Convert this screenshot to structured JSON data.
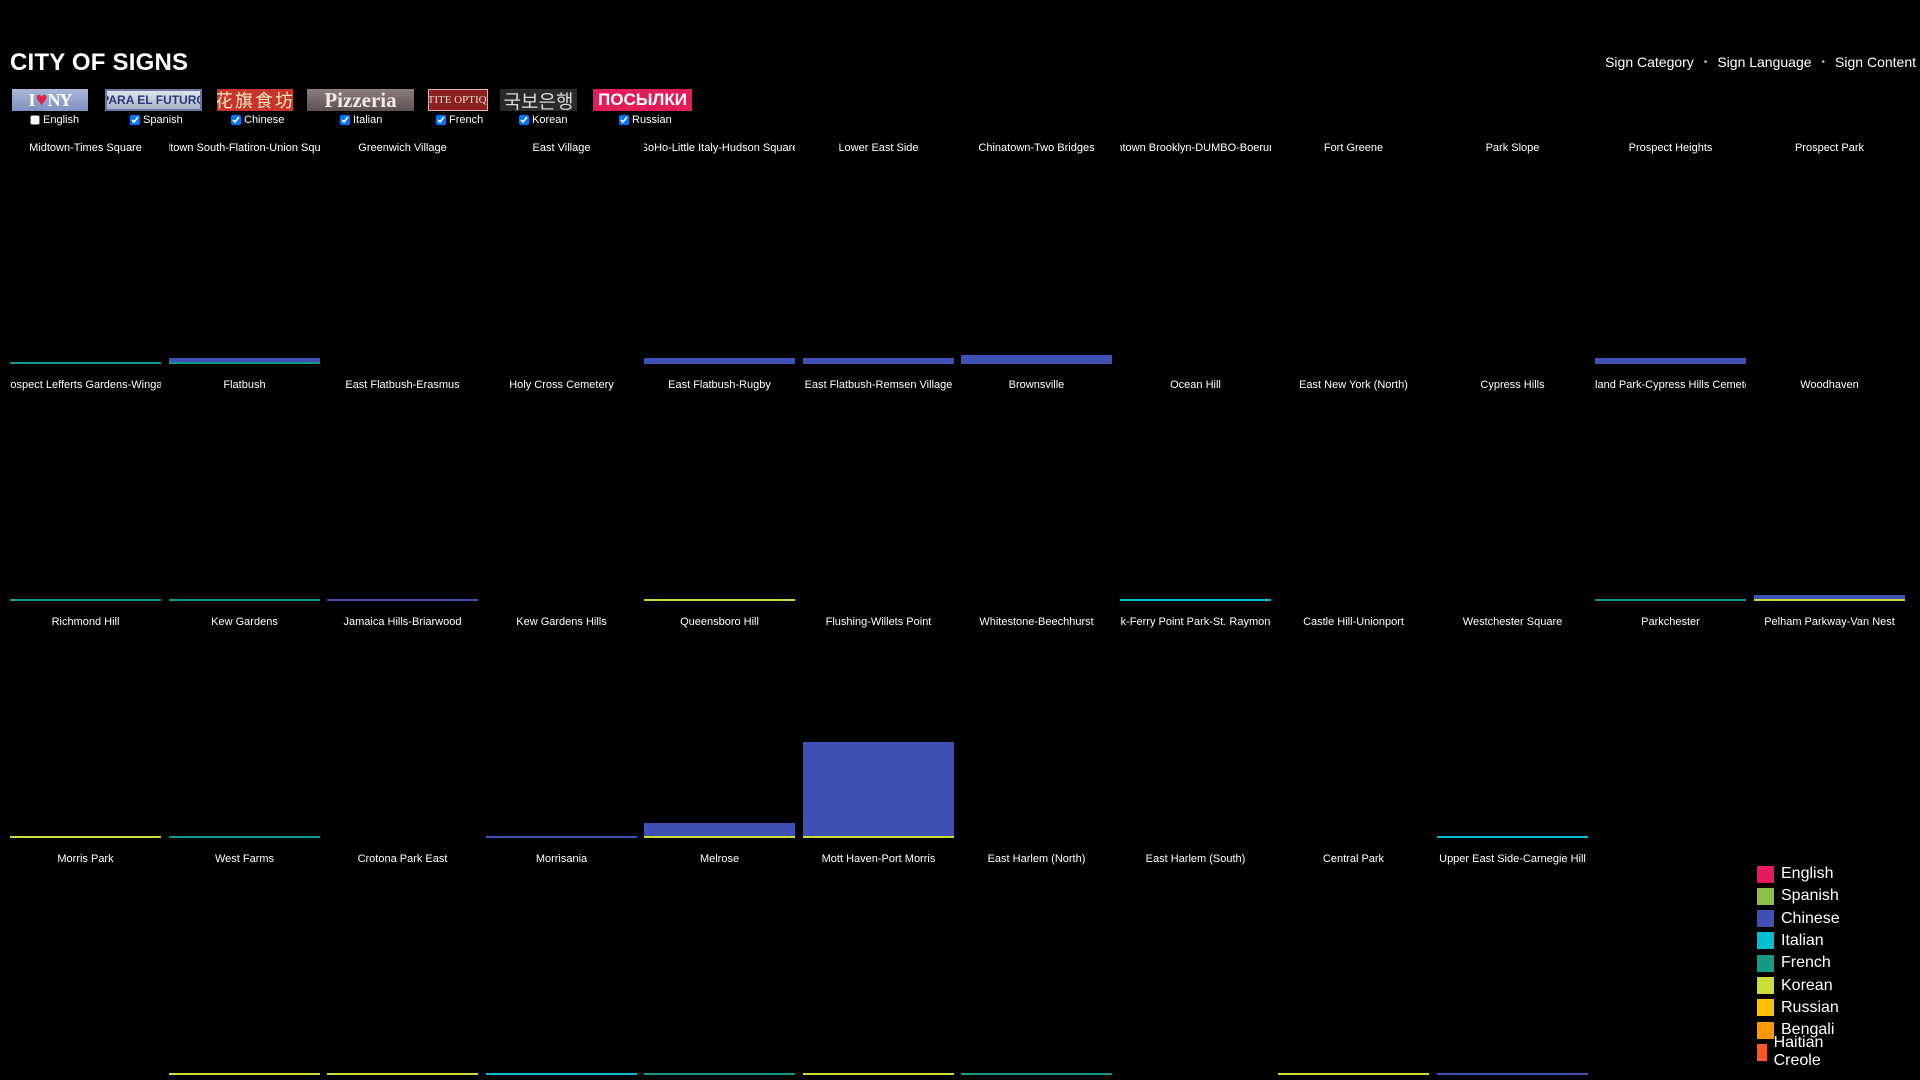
{
  "title": "CITY OF SIGNS",
  "nav": [
    "Sign Category",
    "Sign Language",
    "Sign Content"
  ],
  "filters": [
    {
      "key": "english",
      "label": "English",
      "checked": false,
      "sign_text": "I ♥ NY",
      "icon": "i-love-ny-sign-icon"
    },
    {
      "key": "spanish",
      "label": "Spanish",
      "checked": true,
      "sign_text": "PARA EL FUTURO",
      "icon": "para-el-futuro-sign-icon"
    },
    {
      "key": "chinese",
      "label": "Chinese",
      "checked": true,
      "sign_text": "花旗食坊",
      "icon": "chinese-restaurant-sign-icon"
    },
    {
      "key": "italian",
      "label": "Italian",
      "checked": true,
      "sign_text": "Pizzeria",
      "icon": "pizzeria-sign-icon"
    },
    {
      "key": "french",
      "label": "French",
      "checked": true,
      "sign_text": "PETITE OPTIQUE",
      "icon": "petite-optique-sign-icon"
    },
    {
      "key": "korean",
      "label": "Korean",
      "checked": true,
      "sign_text": "국보은행",
      "icon": "korean-bank-sign-icon"
    },
    {
      "key": "russian",
      "label": "Russian",
      "checked": true,
      "sign_text": "ПОСЫЛКИ",
      "icon": "posylki-sign-icon"
    }
  ],
  "colors": {
    "english": "#e8195c",
    "spanish": "#8bc34a",
    "chinese": "#3f51b5",
    "italian": "#00bcd4",
    "french": "#129a86",
    "korean": "#cddc39",
    "russian": "#ffc107",
    "bengali": "#ff9800",
    "haitian_creole": "#ff5722",
    "baseline_blue": "#3f51b5",
    "baseline_teal": "#129a86",
    "baseline_lime": "#cddc39"
  },
  "neighborhoods": [
    {
      "label": "Midtown-Times Square",
      "baseline": "french",
      "bar": 0
    },
    {
      "label": "Midtown South-Flatiron-Union Square",
      "baseline": "french",
      "bar": 0.03
    },
    {
      "label": "Greenwich Village",
      "baseline": null,
      "bar": 0
    },
    {
      "label": "East Village",
      "baseline": null,
      "bar": 0
    },
    {
      "label": "SoHo-Little Italy-Hudson Square",
      "baseline": "chinese",
      "bar": 0.04
    },
    {
      "label": "Lower East Side",
      "baseline": "chinese",
      "bar": 0.01
    },
    {
      "label": "Chinatown-Two Bridges",
      "baseline": "chinese",
      "bar": 0.07
    },
    {
      "label": "Downtown Brooklyn-DUMBO-Boerum Hill",
      "baseline": null,
      "bar": 0
    },
    {
      "label": "Fort Greene",
      "baseline": null,
      "bar": 0
    },
    {
      "label": "Park Slope",
      "baseline": null,
      "bar": 0
    },
    {
      "label": "Prospect Heights",
      "baseline": "chinese",
      "bar": 0.01
    },
    {
      "label": "Prospect Park",
      "baseline": null,
      "bar": 0
    },
    {
      "label": "Prospect Lefferts Gardens-Wingate",
      "baseline": "french",
      "bar": 0
    },
    {
      "label": "Flatbush",
      "baseline": "french",
      "bar": 0
    },
    {
      "label": "East Flatbush-Erasmus",
      "baseline": "chinese",
      "bar": 0
    },
    {
      "label": "Holy Cross Cemetery",
      "baseline": null,
      "bar": 0
    },
    {
      "label": "East Flatbush-Rugby",
      "baseline": "korean",
      "bar": 0
    },
    {
      "label": "East Flatbush-Remsen Village",
      "baseline": null,
      "bar": 0
    },
    {
      "label": "Brownsville",
      "baseline": null,
      "bar": 0
    },
    {
      "label": "Ocean Hill",
      "baseline": "italian",
      "bar": 0
    },
    {
      "label": "East New York (North)",
      "baseline": null,
      "bar": 0
    },
    {
      "label": "Cypress Hills",
      "baseline": null,
      "bar": 0
    },
    {
      "label": "Highland Park-Cypress Hills Cemeteries",
      "baseline": "french",
      "bar": 0
    },
    {
      "label": "Woodhaven",
      "baseline": "korean",
      "bar": 0.03
    },
    {
      "label": "Richmond Hill",
      "baseline": "korean",
      "bar": 0
    },
    {
      "label": "Kew Gardens",
      "baseline": "french",
      "bar": 0
    },
    {
      "label": "Jamaica Hills-Briarwood",
      "baseline": null,
      "bar": 0
    },
    {
      "label": "Kew Gardens Hills",
      "baseline": "chinese",
      "bar": 0
    },
    {
      "label": "Queensboro Hill",
      "baseline": "korean",
      "bar": 0.13
    },
    {
      "label": "Flushing-Willets Point",
      "baseline": "korean",
      "bar": 0.92
    },
    {
      "label": "Whitestone-Beechhurst",
      "baseline": null,
      "bar": 0
    },
    {
      "label": "Throgs Neck-Ferry Point Park-St. Raymond Cemetery",
      "baseline": null,
      "bar": 0
    },
    {
      "label": "Castle Hill-Unionport",
      "baseline": null,
      "bar": 0
    },
    {
      "label": "Westchester Square",
      "baseline": "italian",
      "bar": 0
    },
    {
      "label": "Parkchester",
      "baseline": null,
      "bar": 0
    },
    {
      "label": "Pelham Parkway-Van Nest",
      "baseline": null,
      "bar": 0
    },
    {
      "label": "Morris Park",
      "baseline": null,
      "bar": 0
    },
    {
      "label": "West Farms",
      "baseline": "korean",
      "bar": 0
    },
    {
      "label": "Crotona Park East",
      "baseline": "korean",
      "bar": 0
    },
    {
      "label": "Morrisania",
      "baseline": "italian",
      "bar": 0
    },
    {
      "label": "Melrose",
      "baseline": "french",
      "bar": 0
    },
    {
      "label": "Mott Haven-Port Morris",
      "baseline": "korean",
      "bar": 0
    },
    {
      "label": "East Harlem (North)",
      "baseline": "french",
      "bar": 0
    },
    {
      "label": "East Harlem (South)",
      "baseline": null,
      "bar": 0
    },
    {
      "label": "Central Park",
      "baseline": "korean",
      "bar": 0
    },
    {
      "label": "Upper East Side-Carnegie Hill",
      "baseline": "chinese",
      "bar": 0
    }
  ],
  "legend": [
    {
      "label": "English",
      "color_key": "english"
    },
    {
      "label": "Spanish",
      "color_key": "spanish"
    },
    {
      "label": "Chinese",
      "color_key": "chinese"
    },
    {
      "label": "Italian",
      "color_key": "italian"
    },
    {
      "label": "French",
      "color_key": "french"
    },
    {
      "label": "Korean",
      "color_key": "korean"
    },
    {
      "label": "Russian",
      "color_key": "russian"
    },
    {
      "label": "Bengali",
      "color_key": "bengali"
    },
    {
      "label": "Haitian Creole",
      "color_key": "haitian_creole"
    }
  ]
}
